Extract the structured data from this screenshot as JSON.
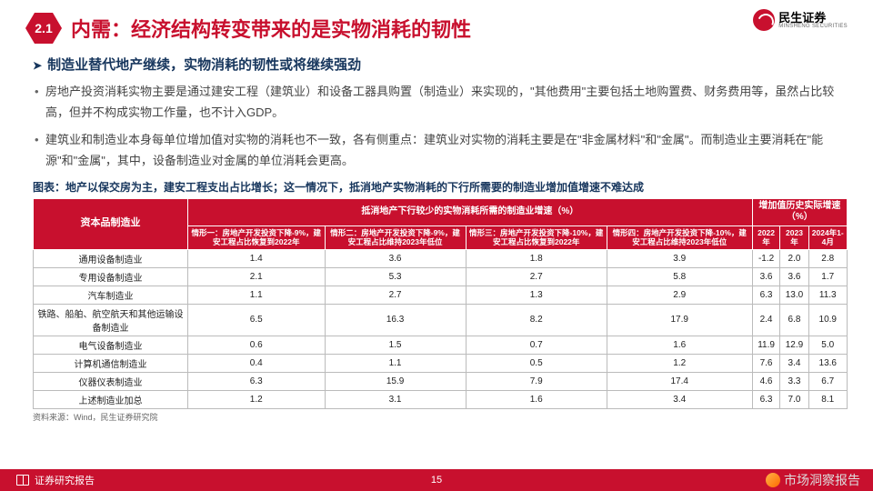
{
  "brand": {
    "cn": "民生证券",
    "en": "MINSHENG SECURITIES"
  },
  "section_number": "2.1",
  "title": "内需：经济结构转变带来的是实物消耗的韧性",
  "lead": "制造业替代地产继续，实物消耗的韧性或将继续强劲",
  "bullets": [
    "房地产投资消耗实物主要是通过建安工程（建筑业）和设备工器具购置（制造业）来实现的，\"其他费用\"主要包括土地购置费、财务费用等，虽然占比较高，但并不构成实物工作量，也不计入GDP。",
    "建筑业和制造业本身每单位增加值对实物的消耗也不一致，各有侧重点：建筑业对实物的消耗主要是在\"非金属材料\"和\"金属\"。而制造业主要消耗在\"能源\"和\"金属\"，其中，设备制造业对金属的单位消耗会更高。"
  ],
  "table_caption": "图表：地产以保交房为主，建安工程支出占比增长；这一情况下，抵消地产实物消耗的下行所需要的制造业增加值增速不难达成",
  "table": {
    "header_top": {
      "rowhead": "资本品制造业",
      "group1": "抵消地产下行较少的实物消耗所需的制造业增速（%）",
      "group2": "增加值历史实际增速（%）"
    },
    "header_sub": [
      "情形一：房地产开发投资下降-9%，建安工程占比恢复到2022年",
      "情形二：房地产开发投资下降-9%，建安工程占比维持2023年低位",
      "情形三：房地产开发投资下降-10%，建安工程占比恢复到2022年",
      "情形四：房地产开发投资下降-10%，建安工程占比维持2023年低位",
      "2022年",
      "2023年",
      "2024年1-4月"
    ],
    "rows": [
      {
        "label": "通用设备制造业",
        "v": [
          "1.4",
          "3.6",
          "1.8",
          "3.9",
          "-1.2",
          "2.0",
          "2.8"
        ]
      },
      {
        "label": "专用设备制造业",
        "v": [
          "2.1",
          "5.3",
          "2.7",
          "5.8",
          "3.6",
          "3.6",
          "1.7"
        ]
      },
      {
        "label": "汽车制造业",
        "v": [
          "1.1",
          "2.7",
          "1.3",
          "2.9",
          "6.3",
          "13.0",
          "11.3"
        ]
      },
      {
        "label": "铁路、船舶、航空航天和其他运输设备制造业",
        "v": [
          "6.5",
          "16.3",
          "8.2",
          "17.9",
          "2.4",
          "6.8",
          "10.9"
        ]
      },
      {
        "label": "电气设备制造业",
        "v": [
          "0.6",
          "1.5",
          "0.7",
          "1.6",
          "11.9",
          "12.9",
          "5.0"
        ]
      },
      {
        "label": "计算机通信制造业",
        "v": [
          "0.4",
          "1.1",
          "0.5",
          "1.2",
          "7.6",
          "3.4",
          "13.6"
        ]
      },
      {
        "label": "仪器仪表制造业",
        "v": [
          "6.3",
          "15.9",
          "7.9",
          "17.4",
          "4.6",
          "3.3",
          "6.7"
        ]
      },
      {
        "label": "上述制造业加总",
        "v": [
          "1.2",
          "3.1",
          "1.6",
          "3.4",
          "6.3",
          "7.0",
          "8.1"
        ]
      }
    ]
  },
  "source": "资料来源：Wind，民生证券研究院",
  "footer": {
    "doc_type": "证券研究报告",
    "page": "15"
  },
  "watermark": "市场洞察报告",
  "colors": {
    "brand_red": "#c8102e",
    "navy": "#17365d",
    "text": "#444444",
    "border": "#bbbbbb",
    "bg": "#ffffff"
  }
}
